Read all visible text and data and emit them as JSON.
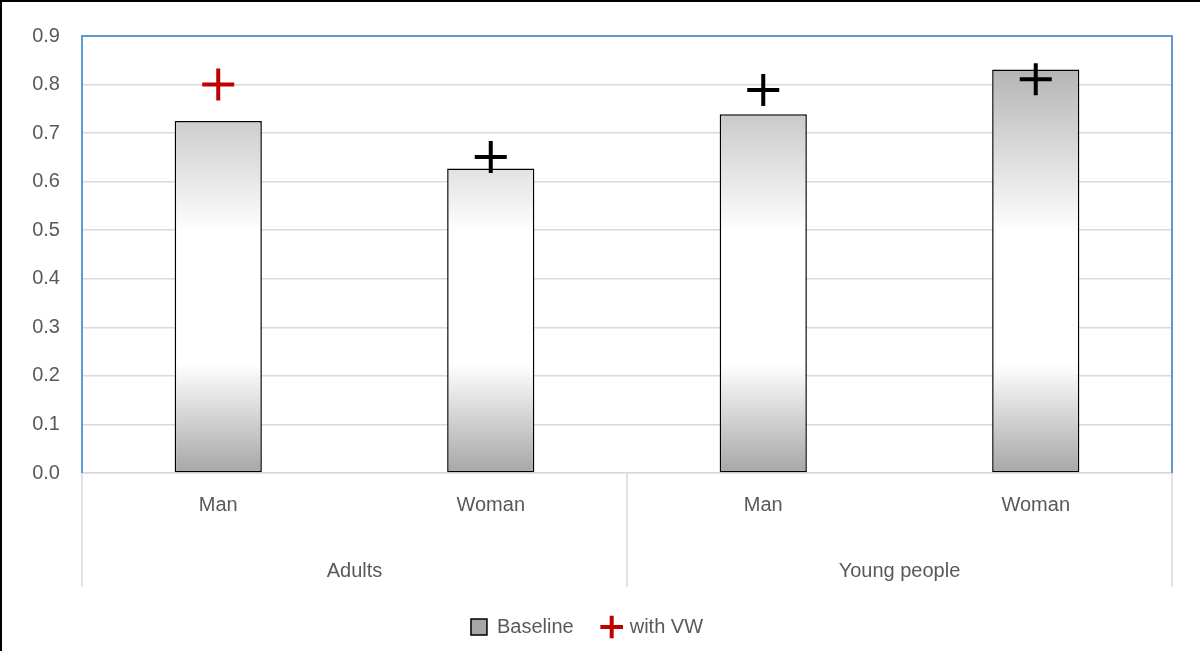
{
  "chart_data": {
    "type": "bar",
    "categories": [
      "Man",
      "Woman",
      "Man",
      "Woman"
    ],
    "series": [
      {
        "name": "Baseline",
        "color": "#a6a6a6",
        "values": [
          0.725,
          0.627,
          0.739,
          0.831
        ]
      },
      {
        "name": "with VW",
        "type": "scatter",
        "colors": [
          "#c00000",
          "#000000",
          "#000000",
          "#000000"
        ],
        "values": [
          0.8,
          0.651,
          0.789,
          0.811
        ]
      }
    ],
    "annotations": [
      "Adults",
      "Young people"
    ],
    "marker": "cross",
    "ylim": [
      0,
      0.9
    ],
    "yticks": [
      {
        "value": 0,
        "label": "0.0"
      },
      0.1,
      0.2,
      0.3,
      0.4,
      0.5,
      0.6,
      0.7,
      0.8,
      0.9
    ],
    "grid": "y",
    "legend": "bottom"
  }
}
